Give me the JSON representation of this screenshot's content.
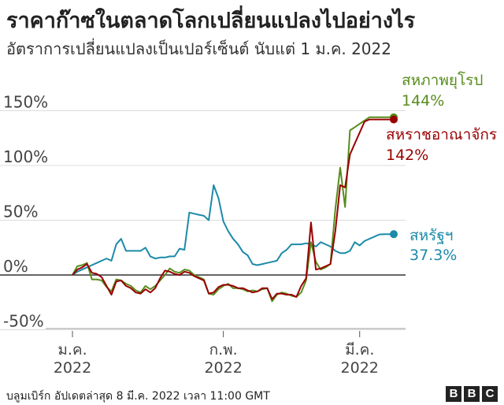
{
  "title": "ราคาก๊าซในตลาดโลกเปลี่ยนแปลงไปอย่างไร",
  "subtitle": "อัตราการเปลี่ยนแปลงเป็นเปอร์เซ็นต์ นับแต่ 1 ม.ค. 2022",
  "footer": "บลูมเบิร์ก อัปเดตล่าสุด 8 มี.ค. 2022 เวลา 11:00 GMT",
  "logo": [
    "B",
    "B",
    "C"
  ],
  "chart_data": {
    "type": "line",
    "title": "ราคาก๊าซในตลาดโลกเปลี่ยนแปลงไปอย่างไร",
    "subtitle": "อัตราการเปลี่ยนแปลงเป็นเปอร์เซ็นต์ นับแต่ 1 ม.ค. 2022",
    "x_unit": "days since 1 Jan 2022",
    "xlim": [
      0,
      68
    ],
    "ylim": [
      -50,
      160
    ],
    "y_ticks": [
      -50,
      0,
      50,
      100,
      150
    ],
    "y_tick_labels": [
      "-50%",
      "0%",
      "50%",
      "100%",
      "150%"
    ],
    "x_ticks": [
      {
        "x": 0,
        "label": "ม.ค.",
        "year": "2022"
      },
      {
        "x": 31,
        "label": "ก.พ.",
        "year": "2022"
      },
      {
        "x": 59,
        "label": "มี.ค.",
        "year": "2022"
      }
    ],
    "grid": true,
    "legend": "inline labels at line ends (right)",
    "series": [
      {
        "name": "สหรัฐฯ",
        "end_label": "37.3%",
        "color": "#1c8aa8",
        "x": [
          0,
          1,
          2,
          3,
          4,
          5,
          6,
          7,
          8,
          9,
          10,
          11,
          12,
          13,
          14,
          15,
          16,
          17,
          18,
          19,
          20,
          21,
          22,
          23,
          24,
          25,
          26,
          27,
          28,
          29,
          30,
          31,
          32,
          33,
          34,
          35,
          36,
          37,
          38,
          39,
          40,
          41,
          42,
          43,
          44,
          45,
          46,
          47,
          48,
          49,
          50,
          51,
          52,
          53,
          54,
          55,
          56,
          57,
          58,
          59,
          60,
          61,
          62,
          63,
          64,
          65,
          66
        ],
        "y": [
          0,
          3,
          5,
          7,
          9,
          11,
          13,
          15,
          13,
          28,
          33,
          22,
          22,
          22,
          22,
          25,
          17,
          15,
          16,
          16,
          17,
          17,
          24,
          23,
          57,
          56,
          55,
          54,
          50,
          82,
          70,
          49,
          40,
          33,
          28,
          21,
          18,
          10,
          9,
          10,
          11,
          12,
          13,
          20,
          23,
          28,
          28,
          28,
          29,
          28,
          26,
          30,
          28,
          26,
          22,
          20,
          20,
          22,
          30,
          27,
          31,
          33,
          35,
          37,
          37.3,
          37.3,
          37.3
        ]
      },
      {
        "name": "สหภาพยุโรป",
        "end_label": "144%",
        "color": "#588c1c",
        "x": [
          0,
          1,
          2,
          3,
          4,
          5,
          6,
          7,
          8,
          9,
          10,
          11,
          12,
          13,
          14,
          15,
          16,
          17,
          18,
          19,
          20,
          21,
          22,
          23,
          24,
          25,
          26,
          27,
          28,
          29,
          30,
          31,
          32,
          33,
          34,
          35,
          36,
          37,
          38,
          39,
          40,
          41,
          42,
          43,
          44,
          45,
          46,
          47,
          48,
          49,
          50,
          51,
          52,
          53,
          54,
          55,
          56,
          57,
          58,
          59,
          60,
          61,
          62,
          63,
          64,
          65,
          66
        ],
        "y": [
          0,
          8,
          9,
          11,
          -4,
          -4,
          -5,
          -11,
          -15,
          -4,
          -5,
          -8,
          -10,
          -14,
          -16,
          -10,
          -13,
          -10,
          -5,
          0,
          6,
          3,
          2,
          5,
          4,
          0,
          -2,
          -4,
          -17,
          -18,
          -13,
          -10,
          -8,
          -12,
          -12,
          -13,
          -15,
          -14,
          -15,
          -13,
          -12,
          -24,
          -18,
          -16,
          -17,
          -19,
          -20,
          -16,
          -5,
          30,
          12,
          5,
          7,
          10,
          60,
          98,
          62,
          132,
          135,
          138,
          141,
          144,
          144,
          144,
          144,
          144,
          144
        ]
      },
      {
        "name": "สหราชอาณาจักร",
        "end_label": "142%",
        "color": "#990000",
        "x": [
          0,
          1,
          2,
          3,
          4,
          5,
          6,
          7,
          8,
          9,
          10,
          11,
          12,
          13,
          14,
          15,
          16,
          17,
          18,
          19,
          20,
          21,
          22,
          23,
          24,
          25,
          26,
          27,
          28,
          29,
          30,
          31,
          32,
          33,
          34,
          35,
          36,
          37,
          38,
          39,
          40,
          41,
          42,
          43,
          44,
          45,
          46,
          47,
          48,
          49,
          50,
          51,
          52,
          53,
          54,
          55,
          56,
          57,
          58,
          59,
          60,
          61,
          62,
          63,
          64,
          65,
          66
        ],
        "y": [
          0,
          5,
          7,
          10,
          2,
          1,
          -2,
          -10,
          -18,
          -6,
          -5,
          -10,
          -12,
          -16,
          -17,
          -13,
          -16,
          -12,
          -3,
          4,
          3,
          1,
          0,
          3,
          2,
          -1,
          -3,
          -5,
          -17,
          -16,
          -11,
          -9,
          -9,
          -10,
          -12,
          -12,
          -14,
          -16,
          -15,
          -12,
          -12,
          -22,
          -17,
          -17,
          -18,
          -18,
          -20,
          -10,
          -3,
          48,
          5,
          6,
          8,
          10,
          40,
          82,
          80,
          110,
          120,
          130,
          140,
          142,
          142,
          142,
          142,
          142,
          142
        ]
      }
    ]
  }
}
